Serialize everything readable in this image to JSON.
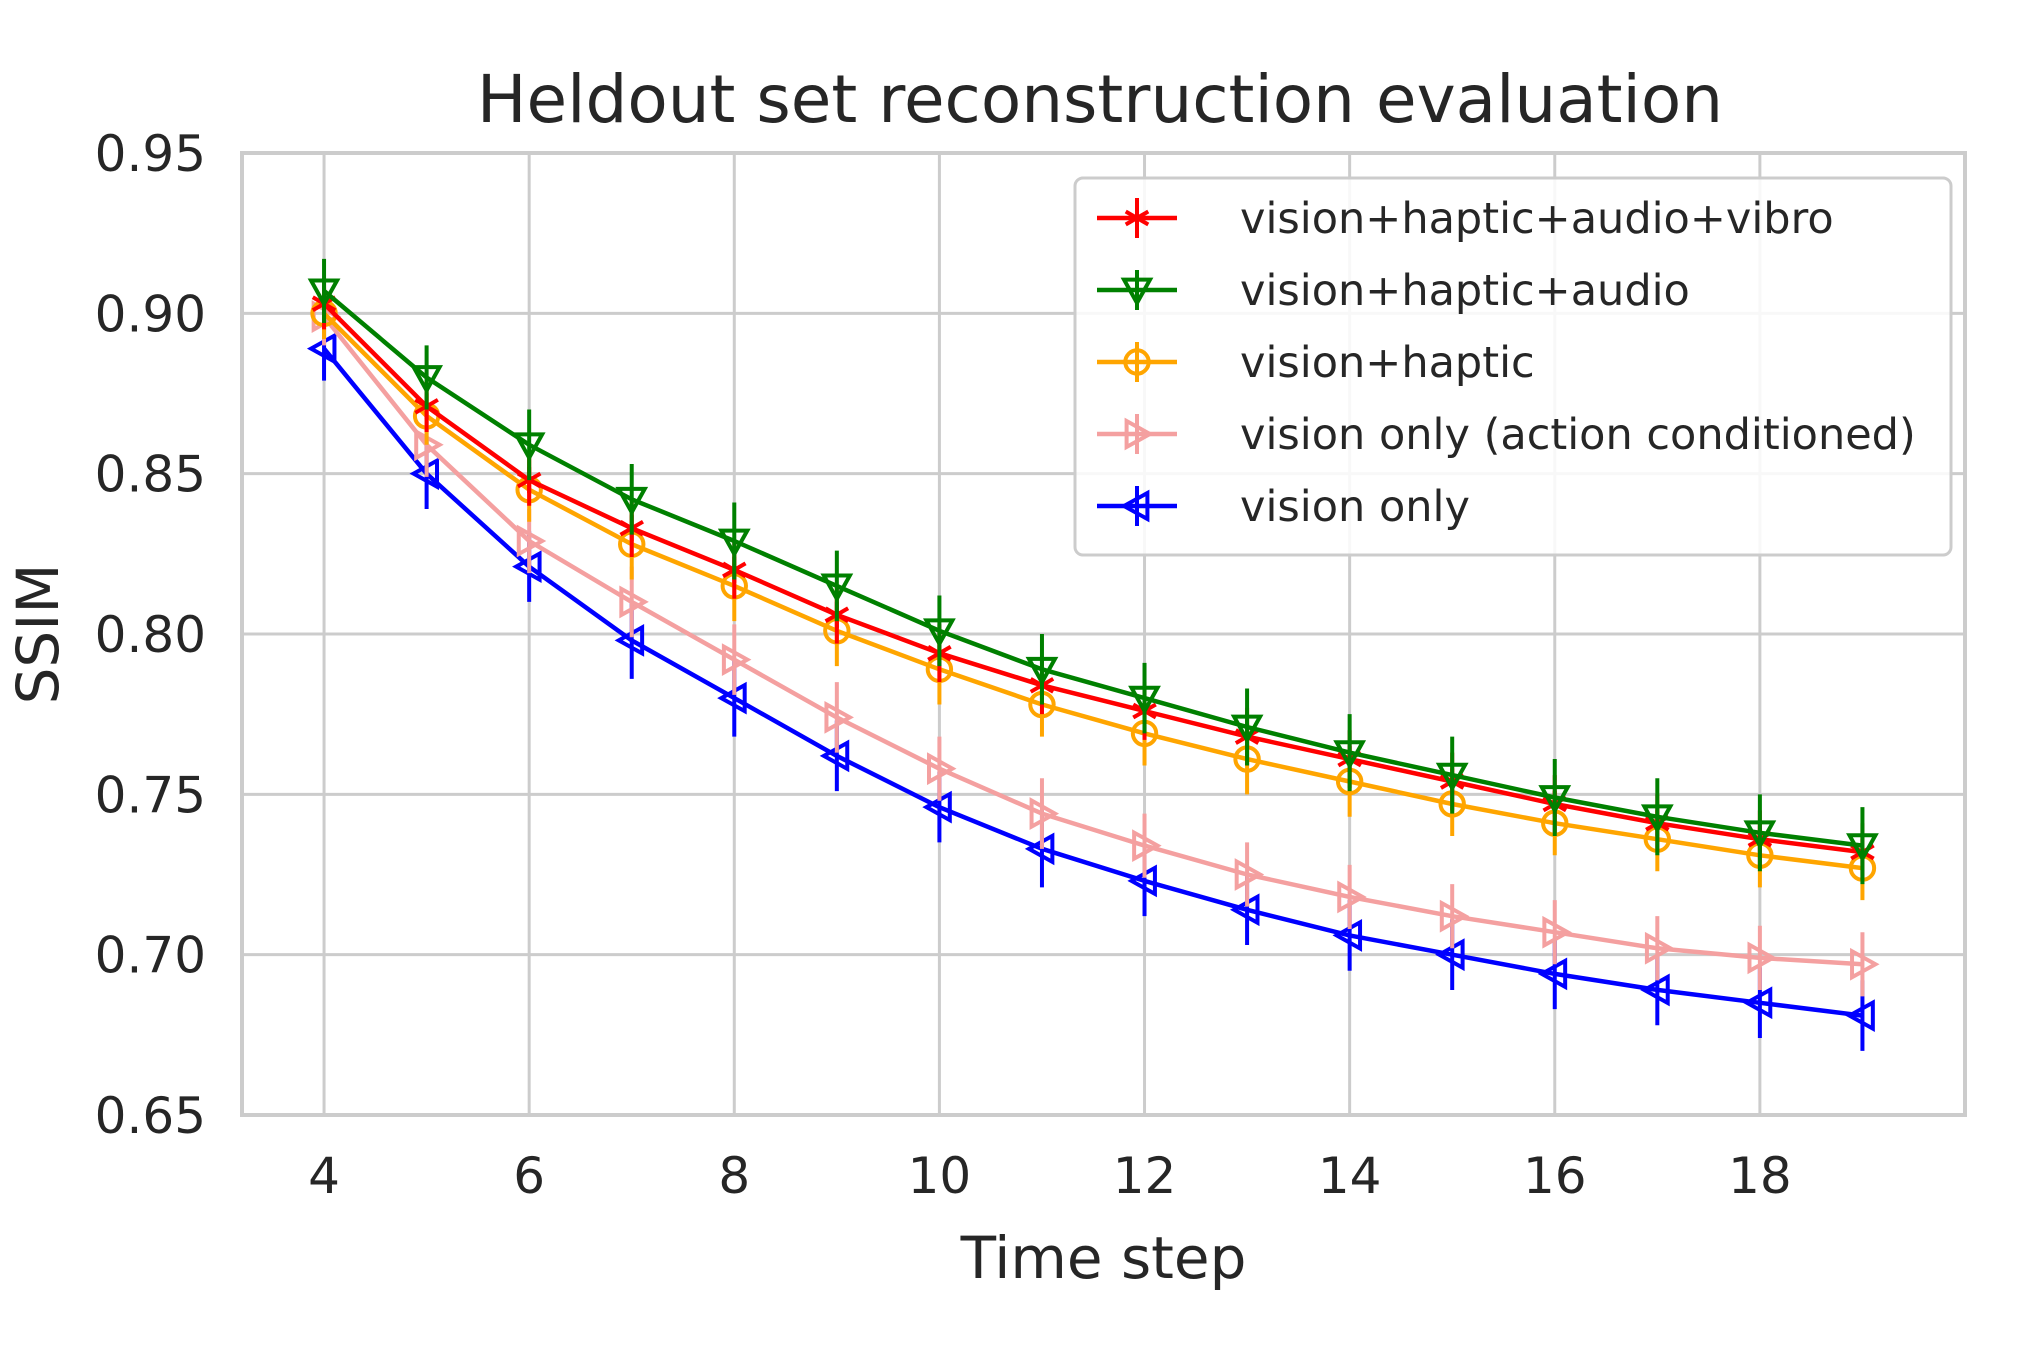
{
  "chart_data": {
    "type": "line",
    "title": "Heldout set reconstruction evaluation",
    "xlabel": "Time step",
    "ylabel": "SSIM",
    "xlim": [
      3.2,
      20.0
    ],
    "ylim": [
      0.65,
      0.95
    ],
    "x_ticks": [
      4,
      6,
      8,
      10,
      12,
      14,
      16,
      18
    ],
    "x_tick_labels": [
      "4",
      "6",
      "8",
      "10",
      "12",
      "14",
      "16",
      "18"
    ],
    "y_ticks": [
      0.65,
      0.7,
      0.75,
      0.8,
      0.85,
      0.9,
      0.95
    ],
    "y_tick_labels": [
      "0.65",
      "0.70",
      "0.75",
      "0.80",
      "0.85",
      "0.90",
      "0.95"
    ],
    "grid": true,
    "legend_position": "top-right",
    "x": [
      4,
      5,
      6,
      7,
      8,
      9,
      10,
      11,
      12,
      13,
      14,
      15,
      16,
      17,
      18,
      19
    ],
    "series": [
      {
        "name": "vision+haptic+audio+vibro",
        "color": "#ff0000",
        "marker": "star",
        "values": [
          0.903,
          0.871,
          0.848,
          0.833,
          0.82,
          0.806,
          0.794,
          0.784,
          0.776,
          0.768,
          0.761,
          0.754,
          0.747,
          0.741,
          0.736,
          0.732
        ],
        "errors": [
          0.008,
          0.008,
          0.008,
          0.009,
          0.009,
          0.009,
          0.009,
          0.009,
          0.009,
          0.009,
          0.009,
          0.009,
          0.009,
          0.009,
          0.009,
          0.009
        ]
      },
      {
        "name": "vision+haptic+audio",
        "color": "#008000",
        "marker": "triangle-down",
        "values": [
          0.907,
          0.88,
          0.859,
          0.842,
          0.829,
          0.815,
          0.801,
          0.789,
          0.78,
          0.771,
          0.763,
          0.756,
          0.749,
          0.743,
          0.738,
          0.734
        ],
        "errors": [
          0.01,
          0.01,
          0.011,
          0.011,
          0.012,
          0.011,
          0.011,
          0.011,
          0.011,
          0.012,
          0.012,
          0.012,
          0.012,
          0.012,
          0.012,
          0.012
        ]
      },
      {
        "name": "vision+haptic",
        "color": "#ffa500",
        "marker": "circle",
        "values": [
          0.9,
          0.868,
          0.845,
          0.828,
          0.815,
          0.801,
          0.789,
          0.778,
          0.769,
          0.761,
          0.754,
          0.747,
          0.741,
          0.736,
          0.731,
          0.727
        ],
        "errors": [
          0.008,
          0.009,
          0.01,
          0.011,
          0.011,
          0.011,
          0.011,
          0.01,
          0.01,
          0.011,
          0.011,
          0.01,
          0.01,
          0.01,
          0.01,
          0.01
        ]
      },
      {
        "name": "vision only (action conditioned)",
        "color": "#f4a0a0",
        "marker": "triangle-right",
        "values": [
          0.899,
          0.859,
          0.829,
          0.81,
          0.792,
          0.774,
          0.758,
          0.744,
          0.734,
          0.725,
          0.718,
          0.712,
          0.707,
          0.702,
          0.699,
          0.697
        ],
        "errors": [
          0.009,
          0.01,
          0.01,
          0.011,
          0.011,
          0.011,
          0.01,
          0.011,
          0.01,
          0.01,
          0.01,
          0.01,
          0.01,
          0.01,
          0.01,
          0.01
        ]
      },
      {
        "name": "vision only",
        "color": "#0000ff",
        "marker": "triangle-left",
        "values": [
          0.889,
          0.85,
          0.821,
          0.798,
          0.78,
          0.762,
          0.746,
          0.733,
          0.723,
          0.714,
          0.706,
          0.7,
          0.694,
          0.689,
          0.685,
          0.681
        ],
        "errors": [
          0.01,
          0.011,
          0.011,
          0.012,
          0.012,
          0.011,
          0.011,
          0.012,
          0.011,
          0.011,
          0.011,
          0.011,
          0.011,
          0.011,
          0.011,
          0.011
        ]
      }
    ]
  }
}
